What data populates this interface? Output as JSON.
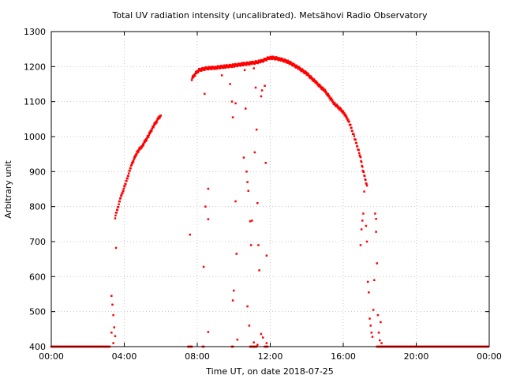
{
  "chart_data": {
    "type": "scatter",
    "title": "Total UV radiation intensity (uncalibrated). Metsähovi Radio Observatory",
    "xlabel": "Time UT, on date 2018-07-25",
    "ylabel": "Arbitrary unit",
    "xlim": [
      0,
      24
    ],
    "ylim": [
      400,
      1300
    ],
    "x_ticks": [
      0,
      4,
      8,
      12,
      16,
      20,
      24
    ],
    "x_tick_labels": [
      "00:00",
      "04:00",
      "08:00",
      "12:00",
      "16:00",
      "20:00",
      "00:00"
    ],
    "y_ticks": [
      400,
      500,
      600,
      700,
      800,
      900,
      1000,
      1100,
      1200,
      1300
    ],
    "grid": true,
    "marker_color": "#ff0000",
    "series": [
      {
        "curve": [
          [
            3.5,
            770
          ],
          [
            3.8,
            825
          ],
          [
            4.1,
            870
          ],
          [
            4.4,
            920
          ],
          [
            4.7,
            955
          ],
          [
            5.0,
            975
          ],
          [
            5.3,
            1000
          ],
          [
            5.6,
            1030
          ],
          [
            5.85,
            1050
          ],
          [
            6.0,
            1060
          ],
          [
            7.7,
            1165
          ],
          [
            7.9,
            1180
          ],
          [
            8.1,
            1190
          ],
          [
            8.5,
            1195
          ],
          [
            9.0,
            1197
          ],
          [
            9.5,
            1200
          ],
          [
            10.0,
            1203
          ],
          [
            10.5,
            1207
          ],
          [
            11.0,
            1210
          ],
          [
            11.5,
            1215
          ],
          [
            12.0,
            1226
          ],
          [
            12.5,
            1222
          ],
          [
            13.0,
            1213
          ],
          [
            13.5,
            1198
          ],
          [
            14.0,
            1180
          ],
          [
            14.5,
            1155
          ],
          [
            15.0,
            1130
          ],
          [
            15.5,
            1095
          ],
          [
            16.0,
            1070
          ],
          [
            16.3,
            1045
          ],
          [
            16.6,
            1000
          ],
          [
            16.9,
            950
          ],
          [
            17.1,
            900
          ],
          [
            17.3,
            860
          ]
        ],
        "scatter": [
          [
            3.3,
            545
          ],
          [
            3.35,
            520
          ],
          [
            3.4,
            490
          ],
          [
            3.45,
            455
          ],
          [
            3.5,
            430
          ],
          [
            3.55,
            682
          ],
          [
            3.3,
            440
          ],
          [
            3.4,
            410
          ],
          [
            7.6,
            720
          ],
          [
            8.4,
            1122
          ],
          [
            8.45,
            800
          ],
          [
            8.6,
            851
          ],
          [
            8.6,
            764
          ],
          [
            8.35,
            628
          ],
          [
            8.6,
            442
          ],
          [
            9.35,
            1175
          ],
          [
            9.8,
            1150
          ],
          [
            9.9,
            1100
          ],
          [
            9.95,
            1055
          ],
          [
            10.1,
            1095
          ],
          [
            10.1,
            815
          ],
          [
            10.15,
            665
          ],
          [
            10.0,
            560
          ],
          [
            9.95,
            532
          ],
          [
            10.2,
            420
          ],
          [
            10.6,
            1190
          ],
          [
            10.65,
            1080
          ],
          [
            10.7,
            900
          ],
          [
            10.75,
            870
          ],
          [
            10.8,
            845
          ],
          [
            10.55,
            940
          ],
          [
            10.9,
            758
          ],
          [
            10.95,
            690
          ],
          [
            11.0,
            760
          ],
          [
            10.75,
            515
          ],
          [
            10.85,
            460
          ],
          [
            11.1,
            1195
          ],
          [
            11.2,
            1140
          ],
          [
            11.25,
            1020
          ],
          [
            11.15,
            955
          ],
          [
            11.3,
            810
          ],
          [
            11.35,
            690
          ],
          [
            11.4,
            618
          ],
          [
            11.5,
            1115
          ],
          [
            11.55,
            1132
          ],
          [
            11.7,
            1145
          ],
          [
            11.75,
            925
          ],
          [
            11.8,
            660
          ],
          [
            11.5,
            436
          ],
          [
            11.6,
            426
          ],
          [
            11.1,
            412
          ],
          [
            11.3,
            405
          ],
          [
            11.8,
            410
          ],
          [
            11.95,
            1225
          ],
          [
            16.95,
            690
          ],
          [
            17.0,
            735
          ],
          [
            17.05,
            760
          ],
          [
            17.1,
            780
          ],
          [
            17.15,
            843
          ],
          [
            17.25,
            745
          ],
          [
            17.3,
            700
          ],
          [
            17.35,
            585
          ],
          [
            17.4,
            555
          ],
          [
            17.45,
            480
          ],
          [
            17.5,
            460
          ],
          [
            17.55,
            440
          ],
          [
            17.6,
            428
          ],
          [
            17.65,
            505
          ],
          [
            17.7,
            590
          ],
          [
            17.75,
            780
          ],
          [
            17.8,
            765
          ],
          [
            17.8,
            728
          ],
          [
            17.85,
            638
          ],
          [
            17.9,
            490
          ],
          [
            17.95,
            440
          ],
          [
            18.0,
            418
          ],
          [
            18.05,
            470
          ],
          [
            18.1,
            410
          ]
        ],
        "baseline_segments": [
          [
            0,
            3.2
          ],
          [
            7.5,
            7.7
          ],
          [
            8.3,
            8.4
          ],
          [
            9.9,
            10.0
          ],
          [
            10.9,
            11.3
          ],
          [
            11.7,
            11.9
          ],
          [
            17.85,
            24
          ]
        ]
      }
    ]
  }
}
